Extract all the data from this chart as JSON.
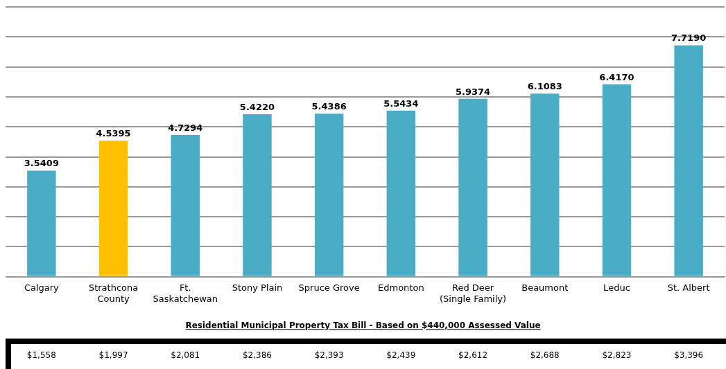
{
  "chart_data": {
    "type": "bar",
    "categories": [
      "Calgary",
      "Strathcona County",
      "Ft. Saskatchewan",
      "Stony Plain",
      "Spruce Grove",
      "Edmonton",
      "Red Deer (Single Family)",
      "Beaumont",
      "Leduc",
      "St. Albert"
    ],
    "values": [
      3.5409,
      4.5395,
      4.7294,
      5.422,
      5.4386,
      5.5434,
      5.9374,
      6.1083,
      6.417,
      7.719
    ],
    "colors": [
      "#4bacc6",
      "#ffc000",
      "#4bacc6",
      "#4bacc6",
      "#4bacc6",
      "#4bacc6",
      "#4bacc6",
      "#4bacc6",
      "#4bacc6",
      "#4bacc6"
    ],
    "value_labels": [
      "3.5409",
      "4.5395",
      "4.7294",
      "5.4220",
      "5.4386",
      "5.5434",
      "5.9374",
      "6.1083",
      "6.4170",
      "7.7190"
    ],
    "ylim": [
      0,
      9
    ],
    "tick_labels": "x",
    "grid": "y",
    "legend": false,
    "annotations": [
      "Residential Municipal Property Tax Bill - Based on $440,000 Assessed Value",
      "$1,558",
      "$1,997",
      "$2,081",
      "$2,386",
      "$2,393",
      "$2,439",
      "$2,612",
      "$2,688",
      "$2,823",
      "$3,396"
    ]
  }
}
